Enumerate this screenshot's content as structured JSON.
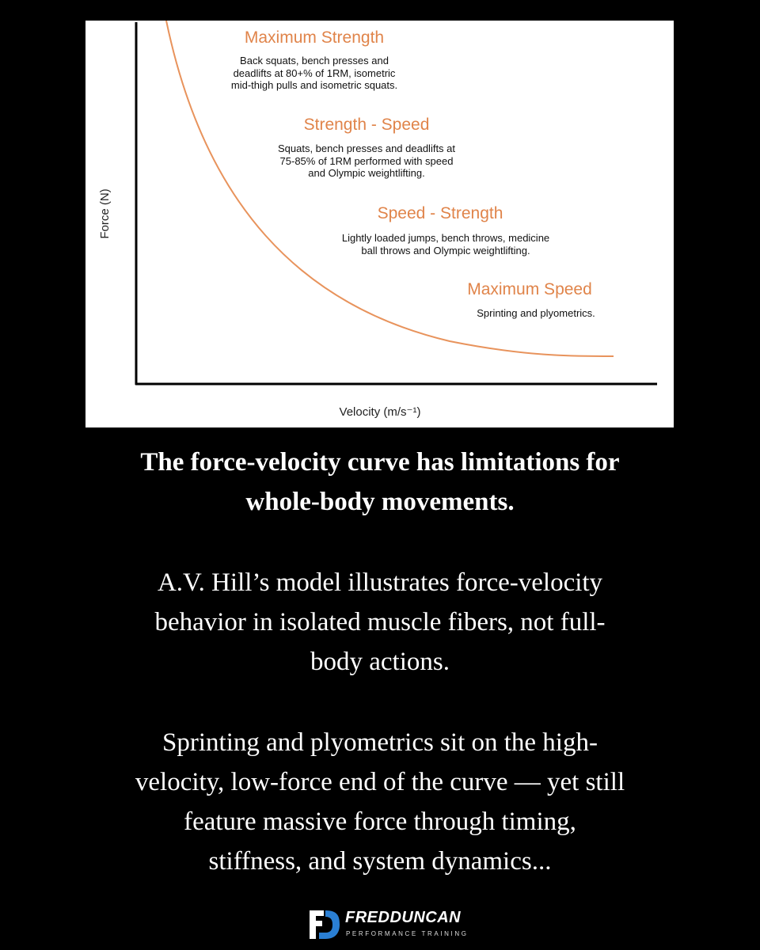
{
  "figure": {
    "y_axis_label": "Force (N)",
    "x_axis_label": "Velocity (m/s⁻¹)",
    "zones": [
      {
        "title": "Maximum Strength",
        "description": [
          "Back squats, bench presses and",
          "deadlifts at 80+% of 1RM, isometric",
          "mid-thigh pulls and isometric squats."
        ]
      },
      {
        "title": "Strength - Speed",
        "description": [
          "Squats, bench presses and deadlifts at",
          "75-85% of 1RM performed with speed",
          "and Olympic weightlifting."
        ]
      },
      {
        "title": "Speed - Strength",
        "description": [
          "Lightly loaded jumps, bench throws, medicine",
          "ball throws and Olympic weightlifting."
        ]
      },
      {
        "title": "Maximum Speed",
        "description": [
          "Sprinting and plyometrics."
        ]
      }
    ]
  },
  "text": {
    "heading": [
      "The force-velocity curve has limitations for",
      "whole-body movements."
    ],
    "paragraphs": [
      [
        "A.V. Hill’s model illustrates force-velocity",
        "behavior in isolated muscle fibers, not full-",
        "body actions."
      ],
      [
        "Sprinting and plyometrics sit on the high-",
        "velocity, low-force end of the curve — yet still",
        "feature massive force through timing,",
        "stiffness, and system dynamics..."
      ]
    ]
  },
  "logo": {
    "name": "FREDDUNCAN",
    "tagline": "PERFORMANCE TRAINING"
  }
}
